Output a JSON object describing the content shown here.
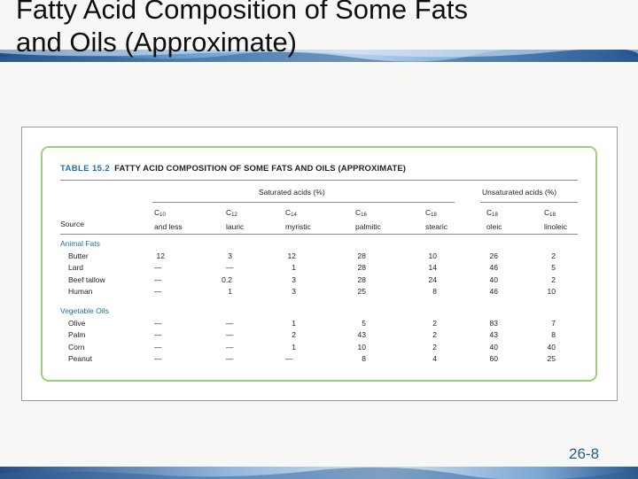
{
  "slide": {
    "title_line1": "Fatty Acid Composition of Some Fats",
    "title_line2": "and Oils (Approximate)",
    "page_number": "26-8"
  },
  "table": {
    "label": "TABLE 15.2",
    "caption": "FATTY ACID COMPOSITION OF SOME FATS AND OILS (APPROXIMATE)",
    "groups": {
      "saturated": "Saturated acids (%)",
      "unsaturated": "Unsaturated acids (%)"
    },
    "source_header": "Source",
    "columns": [
      {
        "carbon": "C",
        "sub": "10",
        "name": "and less"
      },
      {
        "carbon": "C",
        "sub": "12",
        "name": "lauric"
      },
      {
        "carbon": "C",
        "sub": "14",
        "name": "myristic"
      },
      {
        "carbon": "C",
        "sub": "16",
        "name": "palmitic"
      },
      {
        "carbon": "C",
        "sub": "18",
        "name": "stearic"
      },
      {
        "carbon": "C",
        "sub": "18",
        "name": "oleic"
      },
      {
        "carbon": "C",
        "sub": "18",
        "name": "linoleic"
      }
    ],
    "categories": [
      {
        "name": "Animal Fats",
        "rows": [
          {
            "source": "Butter",
            "values": [
              "12",
              "3",
              "12",
              "28",
              "10",
              "26",
              "2"
            ]
          },
          {
            "source": "Lard",
            "values": [
              "—",
              "—",
              "1",
              "28",
              "14",
              "46",
              "5"
            ]
          },
          {
            "source": "Beef tallow",
            "values": [
              "—",
              "0.2",
              "3",
              "28",
              "24",
              "40",
              "2"
            ]
          },
          {
            "source": "Human",
            "values": [
              "—",
              "1",
              "3",
              "25",
              "8",
              "46",
              "10"
            ]
          }
        ]
      },
      {
        "name": "Vegetable Oils",
        "rows": [
          {
            "source": "Olive",
            "values": [
              "—",
              "—",
              "1",
              "5",
              "2",
              "83",
              "7"
            ]
          },
          {
            "source": "Palm",
            "values": [
              "—",
              "—",
              "2",
              "43",
              "2",
              "43",
              "8"
            ]
          },
          {
            "source": "Corn",
            "values": [
              "—",
              "—",
              "1",
              "10",
              "2",
              "40",
              "40"
            ]
          },
          {
            "source": "Peanut",
            "values": [
              "—",
              "—",
              "—",
              "8",
              "4",
              "60",
              "25"
            ]
          }
        ]
      }
    ]
  },
  "colors": {
    "accent_blue": "#1e6fa6",
    "panel_border": "#9ccf7d",
    "page_number": "#1f5e8f"
  }
}
